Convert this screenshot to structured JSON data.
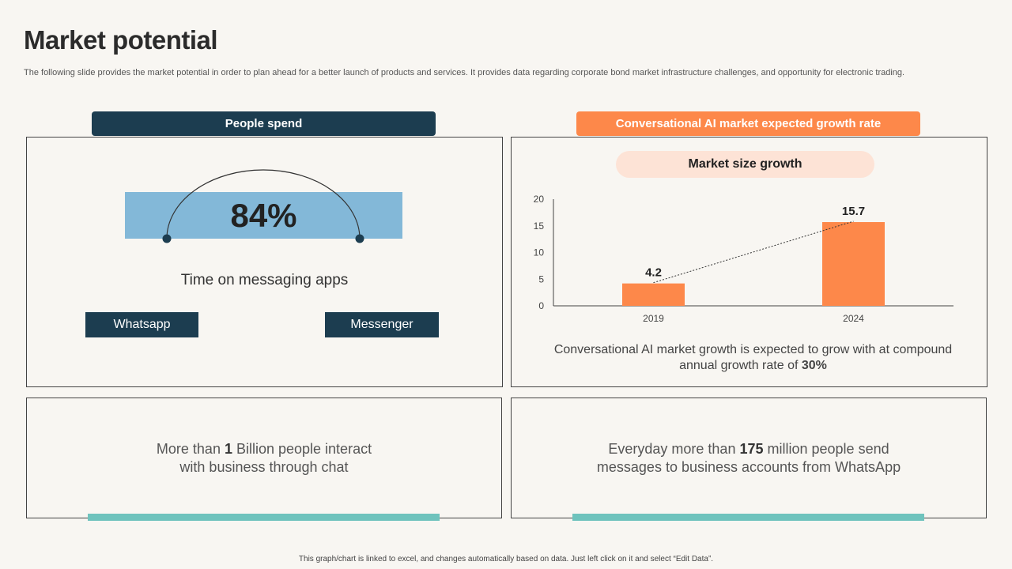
{
  "slide": {
    "title": "Market potential",
    "subtitle": "The following slide provides the market potential in order to plan ahead for a better launch of products and services. It provides data regarding corporate bond market infrastructure challenges, and opportunity for electronic trading.",
    "footer": "This graph/chart is linked to excel, and changes automatically based on data. Just left click on it and select “Edit Data”."
  },
  "left_panel": {
    "header": "People spend",
    "gauge_value": "84%",
    "gauge_label": "Time on messaging apps",
    "buttons": [
      "Whatsapp",
      "Messenger"
    ]
  },
  "right_panel": {
    "header": "Conversational AI market expected growth rate",
    "pill": "Market size growth",
    "note_prefix": "Conversational AI market growth is expected to grow with at compound annual growth rate of ",
    "note_highlight": "30%"
  },
  "stats": [
    {
      "prefix": "More than ",
      "highlight": "1",
      "line1_rest": " Billion people interact",
      "line2": "with business through chat"
    },
    {
      "prefix": "Everyday more than ",
      "highlight": "175",
      "line1_rest": " million people send",
      "line2": "messages to business accounts from WhatsApp"
    }
  ],
  "colors": {
    "navy": "#1c3d50",
    "orange": "#fd884a",
    "gauge_blue": "#83b8d8",
    "teal": "#6fc3bd",
    "pill_bg": "#fde3d6"
  },
  "chart_data": {
    "type": "bar",
    "categories": [
      "2019",
      "2024"
    ],
    "values": [
      4.2,
      15.7
    ],
    "data_labels": [
      "4.2",
      "15.7"
    ],
    "ylim": [
      0,
      20
    ],
    "yticks": [
      "0",
      "5",
      "10",
      "15",
      "20"
    ],
    "grid": false,
    "trendline": "dotted",
    "title": "Market size growth",
    "xlabel": "",
    "ylabel": ""
  }
}
